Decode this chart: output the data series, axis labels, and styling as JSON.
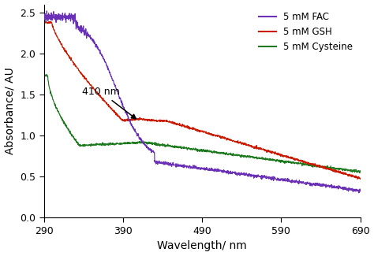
{
  "xlim": [
    290,
    690
  ],
  "ylim": [
    0,
    2.6
  ],
  "xticks": [
    290,
    390,
    490,
    590,
    690
  ],
  "yticks": [
    0,
    0.5,
    1.0,
    1.5,
    2.0,
    2.5
  ],
  "xlabel": "Wavelength/ nm",
  "ylabel": "Absorbance/ AU",
  "annotation_text": "410 nm",
  "colors": {
    "FAC": "#6b30b8",
    "GSH": "#cc1a00",
    "Cysteine": "#1e7a1e"
  },
  "legend": [
    {
      "label": "5 mM FAC",
      "color": "#6b30b8"
    },
    {
      "label": "5 mM GSH",
      "color": "#cc1a00"
    },
    {
      "label": "5 mM Cysteine",
      "color": "#1e7a1e"
    }
  ]
}
